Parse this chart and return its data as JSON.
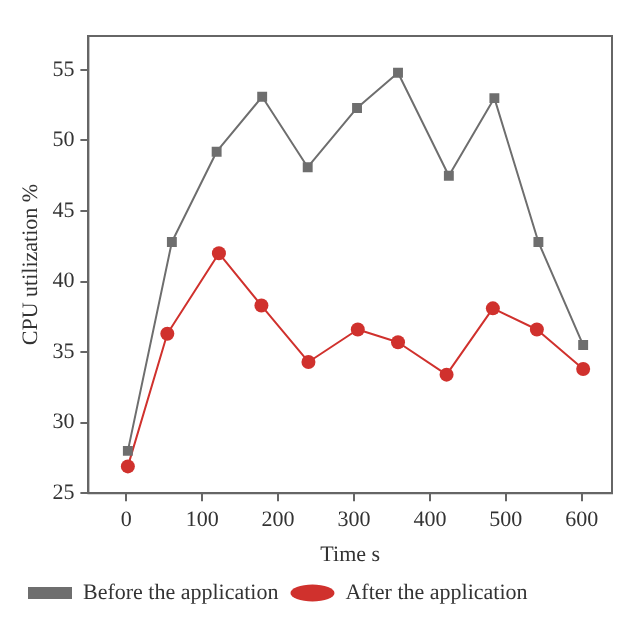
{
  "chart_data": {
    "type": "line",
    "xlabel": "Time s",
    "ylabel": "CPU utilization %",
    "xlim": [
      -50,
      640
    ],
    "xticks": [
      0,
      100,
      200,
      300,
      400,
      500,
      600
    ],
    "ylim": [
      25,
      57.4
    ],
    "yticks": [
      25,
      30,
      35,
      40,
      45,
      50,
      55
    ],
    "grid": false,
    "legend": "bottom left",
    "line_style": "solid",
    "series": [
      {
        "name": "Before the application",
        "color": "#6e6e6e",
        "marker": "square",
        "x": [
          2,
          60,
          119,
          179,
          239,
          304,
          358,
          425,
          485,
          543,
          602
        ],
        "values": [
          28,
          42.8,
          49.2,
          53.1,
          48.1,
          52.3,
          54.8,
          47.5,
          53.0,
          42.8,
          35.5
        ]
      },
      {
        "name": "After the application",
        "color": "#d0312d",
        "marker": "circle",
        "x": [
          2,
          54,
          122,
          178,
          240,
          305,
          358,
          422,
          483,
          541,
          602
        ],
        "values": [
          26.9,
          36.3,
          42.0,
          38.3,
          34.3,
          36.6,
          35.7,
          33.4,
          38.1,
          36.6,
          33.8
        ]
      }
    ]
  }
}
